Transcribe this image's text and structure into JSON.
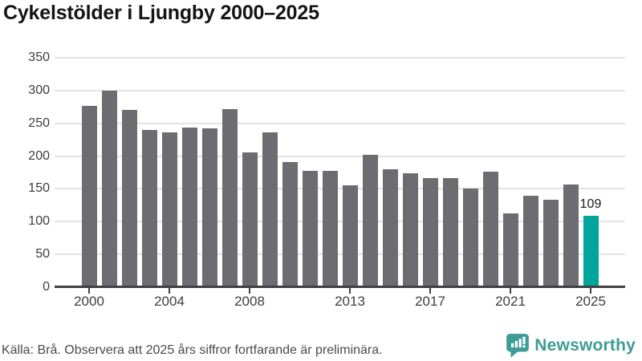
{
  "title": "Cykelstölder i Ljungby 2000–2025",
  "chart_data": {
    "type": "bar",
    "title": "Cykelstölder i Ljungby 2000–2025",
    "categories": [
      2000,
      2001,
      2002,
      2003,
      2004,
      2005,
      2006,
      2007,
      2008,
      2009,
      2010,
      2011,
      2012,
      2013,
      2014,
      2015,
      2016,
      2017,
      2018,
      2019,
      2020,
      2021,
      2022,
      2023,
      2024,
      2025
    ],
    "values": [
      277,
      300,
      270,
      240,
      236,
      244,
      242,
      272,
      206,
      236,
      191,
      177,
      177,
      156,
      202,
      180,
      174,
      166,
      166,
      151,
      176,
      112,
      139,
      134,
      157,
      109
    ],
    "xlabel": "",
    "ylabel": "",
    "ylim": [
      0,
      350
    ],
    "y_ticks": [
      0,
      50,
      100,
      150,
      200,
      250,
      300,
      350
    ],
    "x_ticks": [
      2000,
      2004,
      2008,
      2013,
      2017,
      2021,
      2025
    ],
    "grid": true,
    "legend": "none",
    "bar_color": "#6c6c71",
    "highlight_index": 25,
    "highlight_color": "#00a59b",
    "highlight_value_label": "109"
  },
  "footer": {
    "source": "Källa: Brå. Observera att 2025 års siffror fortfarande är preliminära.",
    "logo_text": "Newsworthy",
    "logo_color": "#3e9c94",
    "logo_icon": "speech-bubble-bar-chart-icon"
  }
}
